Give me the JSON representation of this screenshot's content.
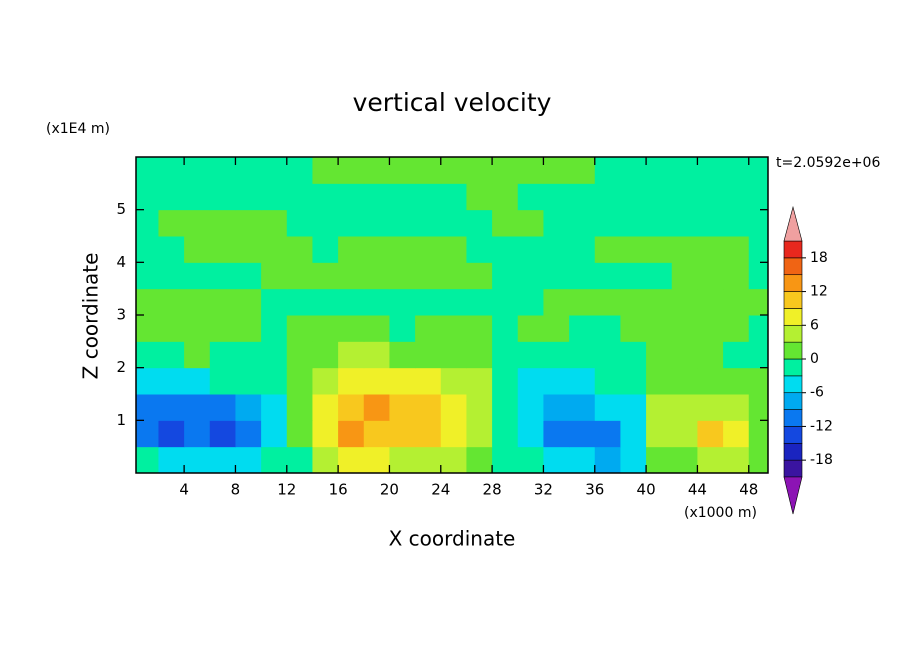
{
  "chart_data": {
    "type": "contour",
    "title": "vertical velocity",
    "x_label": "X coordinate",
    "y_label": "Z coordinate",
    "x_unit": "(x1000 m)",
    "y_unit": "(x1E4 m)",
    "time_label": "t=2.0592e+06",
    "xlim": [
      0.25,
      49.5
    ],
    "ylim": [
      0,
      6
    ],
    "xticks": [
      4,
      8,
      12,
      16,
      20,
      24,
      28,
      32,
      36,
      40,
      44,
      48
    ],
    "yticks": [
      1,
      2,
      3,
      4,
      5
    ],
    "x": [
      1,
      3,
      5,
      7,
      9,
      11,
      13,
      15,
      17,
      19,
      21,
      23,
      25,
      27,
      29,
      31,
      33,
      35,
      37,
      39,
      41,
      43,
      45,
      47,
      49
    ],
    "y": [
      0.25,
      0.75,
      1.25,
      1.75,
      2.25,
      2.75,
      3.25,
      3.75,
      4.25,
      4.75,
      5.25,
      5.75
    ],
    "z": [
      [
        -3,
        -5,
        -6,
        -5,
        -4,
        -3,
        -1,
        4,
        8,
        6,
        5,
        5,
        4,
        2,
        -1,
        -3,
        -5,
        -6,
        -8,
        -4,
        1,
        2,
        5,
        3,
        1
      ],
      [
        -12,
        -13,
        -11,
        -13,
        -10,
        -5,
        1,
        8,
        13,
        11,
        10,
        9,
        7,
        4,
        -2,
        -6,
        -10,
        -12,
        -10,
        -5,
        3,
        5,
        9,
        8,
        2
      ],
      [
        -10,
        -12,
        -11,
        -12,
        -7,
        -4,
        1,
        8,
        10,
        13,
        11,
        9,
        7,
        4,
        -2,
        -5,
        -9,
        -8,
        -6,
        -4,
        3,
        4,
        5,
        4,
        1
      ],
      [
        -6,
        -6,
        -4,
        -3,
        -3,
        -3,
        1,
        4,
        6,
        7,
        7,
        6,
        5,
        3,
        -2,
        -4,
        -5,
        -4,
        -3,
        -2,
        2,
        2,
        2,
        1,
        1
      ],
      [
        -1,
        -2,
        2,
        -1,
        -1,
        -1,
        1,
        2,
        3,
        3,
        2,
        2,
        1,
        1,
        -1,
        -1,
        -2,
        -1,
        -1,
        -1,
        1,
        1,
        1,
        -1,
        -1
      ],
      [
        1,
        1,
        1,
        1,
        2,
        -1,
        1,
        1,
        1,
        1,
        -1,
        1,
        1,
        1,
        -1,
        1,
        1,
        -1,
        -1,
        1,
        1,
        1,
        1,
        1,
        -1
      ],
      [
        1,
        1,
        1,
        1,
        1,
        -1,
        -1,
        -1,
        -1,
        -1,
        -1,
        -1,
        -1,
        -1,
        -1,
        -1,
        1,
        1,
        1,
        1,
        1,
        1,
        1,
        1,
        1
      ],
      [
        -1,
        -1,
        -1,
        -1,
        -1,
        1,
        1,
        1,
        1,
        1,
        1,
        1,
        1,
        1,
        -1,
        -1,
        -1,
        -1,
        -1,
        -1,
        -1,
        1,
        1,
        1,
        -1
      ],
      [
        -1,
        -1,
        1,
        1,
        1,
        1,
        1,
        -1,
        1,
        1,
        1,
        1,
        1,
        -1,
        -1,
        -1,
        -1,
        -1,
        1,
        1,
        1,
        1,
        1,
        1,
        -1
      ],
      [
        -1,
        1,
        1,
        1,
        1,
        1,
        -1,
        -1,
        -1,
        -1,
        -1,
        -1,
        -1,
        -1,
        1,
        1,
        -1,
        -1,
        -1,
        -1,
        -1,
        -1,
        -1,
        -1,
        -1
      ],
      [
        -1,
        -1,
        -1,
        -1,
        -1,
        -1,
        -1,
        -1,
        -1,
        -1,
        -1,
        -1,
        -1,
        1,
        1,
        -1,
        -1,
        -1,
        -1,
        -1,
        -1,
        -1,
        -1,
        -1,
        -1
      ],
      [
        -1,
        -1,
        -1,
        -1,
        -1,
        -1,
        -1,
        1,
        1,
        1,
        1,
        1,
        1,
        1,
        1,
        1,
        1,
        1,
        -1,
        -1,
        -1,
        -1,
        -1,
        -1,
        -1
      ]
    ],
    "levels": [
      -21,
      -18,
      -15,
      -12,
      -9,
      -6,
      -3,
      0,
      3,
      6,
      9,
      12,
      15,
      18,
      21
    ],
    "colors": [
      "#3a14a0",
      "#1a24c0",
      "#1448e0",
      "#0a78f0",
      "#00aaf0",
      "#00dcf0",
      "#00f0a0",
      "#64e632",
      "#b4f032",
      "#f0f028",
      "#f8c81e",
      "#f89614",
      "#f06414",
      "#e8281e"
    ],
    "extend_colors": [
      "#8c14b4",
      "#f0a0a0"
    ],
    "colorbar_ticks": [
      -18,
      -12,
      -6,
      0,
      6,
      12,
      18
    ]
  }
}
